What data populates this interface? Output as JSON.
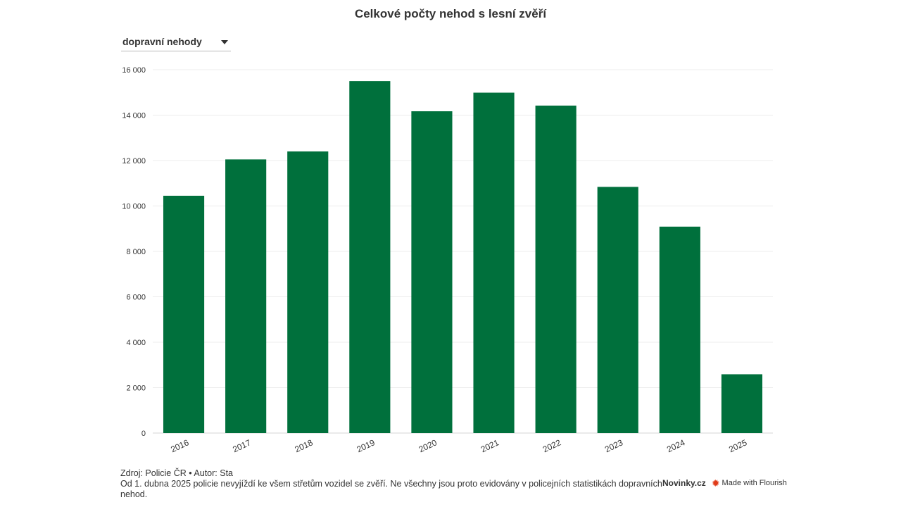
{
  "title": "Celkové počty nehod s lesní zvěří",
  "dropdown": {
    "selected": "dopravní nehody"
  },
  "chart_data": {
    "type": "bar",
    "categories": [
      "2016",
      "2017",
      "2018",
      "2019",
      "2020",
      "2021",
      "2022",
      "2023",
      "2024",
      "2025"
    ],
    "values": [
      10450,
      12050,
      12400,
      15500,
      14170,
      14990,
      14420,
      10840,
      9090,
      2590
    ],
    "ylim": [
      0,
      16000
    ],
    "yticks": [
      0,
      2000,
      4000,
      6000,
      8000,
      10000,
      12000,
      14000,
      16000
    ],
    "ytick_labels": [
      "0",
      "2 000",
      "4 000",
      "6 000",
      "8 000",
      "10 000",
      "12 000",
      "14 000",
      "16 000"
    ],
    "bar_color": "#00703c",
    "grid": true,
    "xlabel": "",
    "ylabel": ""
  },
  "footer": {
    "source": "Zdroj: Policie ČR • Autor: Sta",
    "note": "Od 1. dubna 2025 policie nevyjíždí ke všem střetům vozidel se zvěří. Ne všechny jsou proto evidovány v policejních statistikách dopravních nehod."
  },
  "brand": {
    "novinky": "Novinky.cz",
    "flourish": "Made with Flourish",
    "flourish_icon": "flourish-star-icon",
    "flourish_color": "#e03b1a"
  }
}
